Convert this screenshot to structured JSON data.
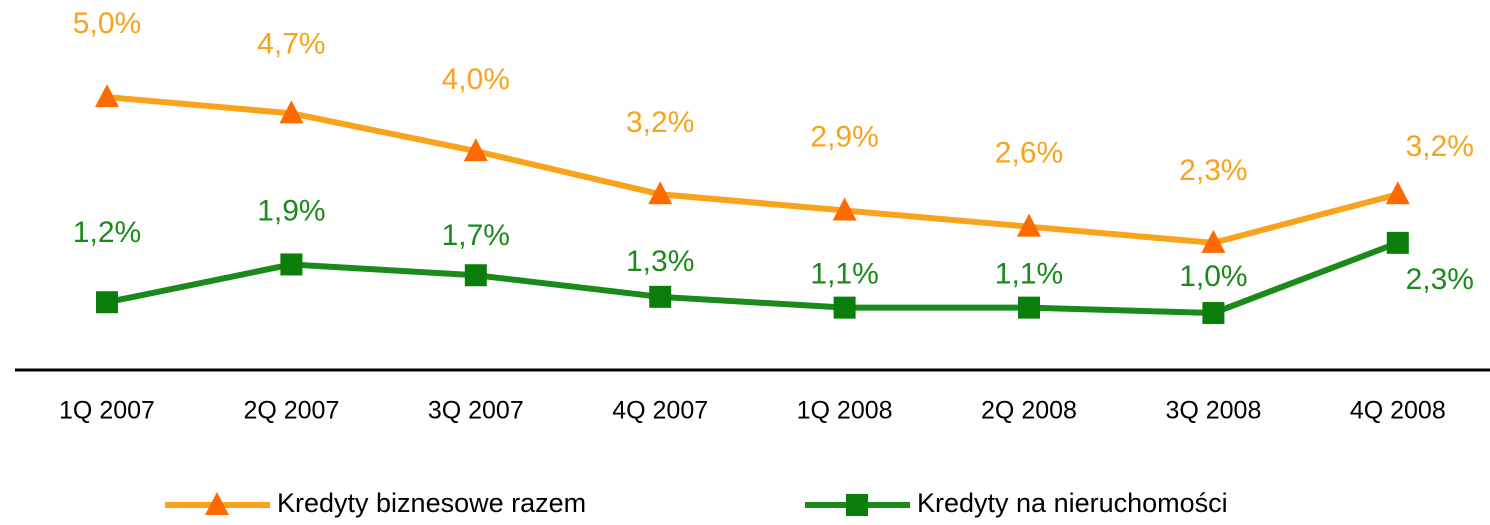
{
  "chart_data": {
    "type": "line",
    "categories": [
      "1Q 2007",
      "2Q 2007",
      "3Q 2007",
      "4Q 2007",
      "1Q 2008",
      "2Q 2008",
      "3Q 2008",
      "4Q 2008"
    ],
    "ylim": [
      0,
      6.8
    ],
    "series": [
      {
        "name": "Kredyty biznesowe razem",
        "color": "#f8a31c",
        "marker_color": "#ff6a00",
        "marker": "triangle",
        "values": [
          5.0,
          4.7,
          4.0,
          3.2,
          2.9,
          2.6,
          2.3,
          3.2
        ],
        "value_labels": [
          "5,0%",
          "4,7%",
          "4,0%",
          "3,2%",
          "2,9%",
          "2,6%",
          "2,3%",
          "3,2%"
        ]
      },
      {
        "name": "Kredyty na nieruchomości",
        "color": "#1b8a1b",
        "marker_color": "#0a7d0a",
        "marker": "square",
        "values": [
          1.2,
          1.9,
          1.7,
          1.3,
          1.1,
          1.1,
          1.0,
          2.3
        ],
        "value_labels": [
          "1,2%",
          "1,9%",
          "1,7%",
          "1,3%",
          "1,1%",
          "1,1%",
          "1,0%",
          "2,3%"
        ]
      }
    ]
  }
}
